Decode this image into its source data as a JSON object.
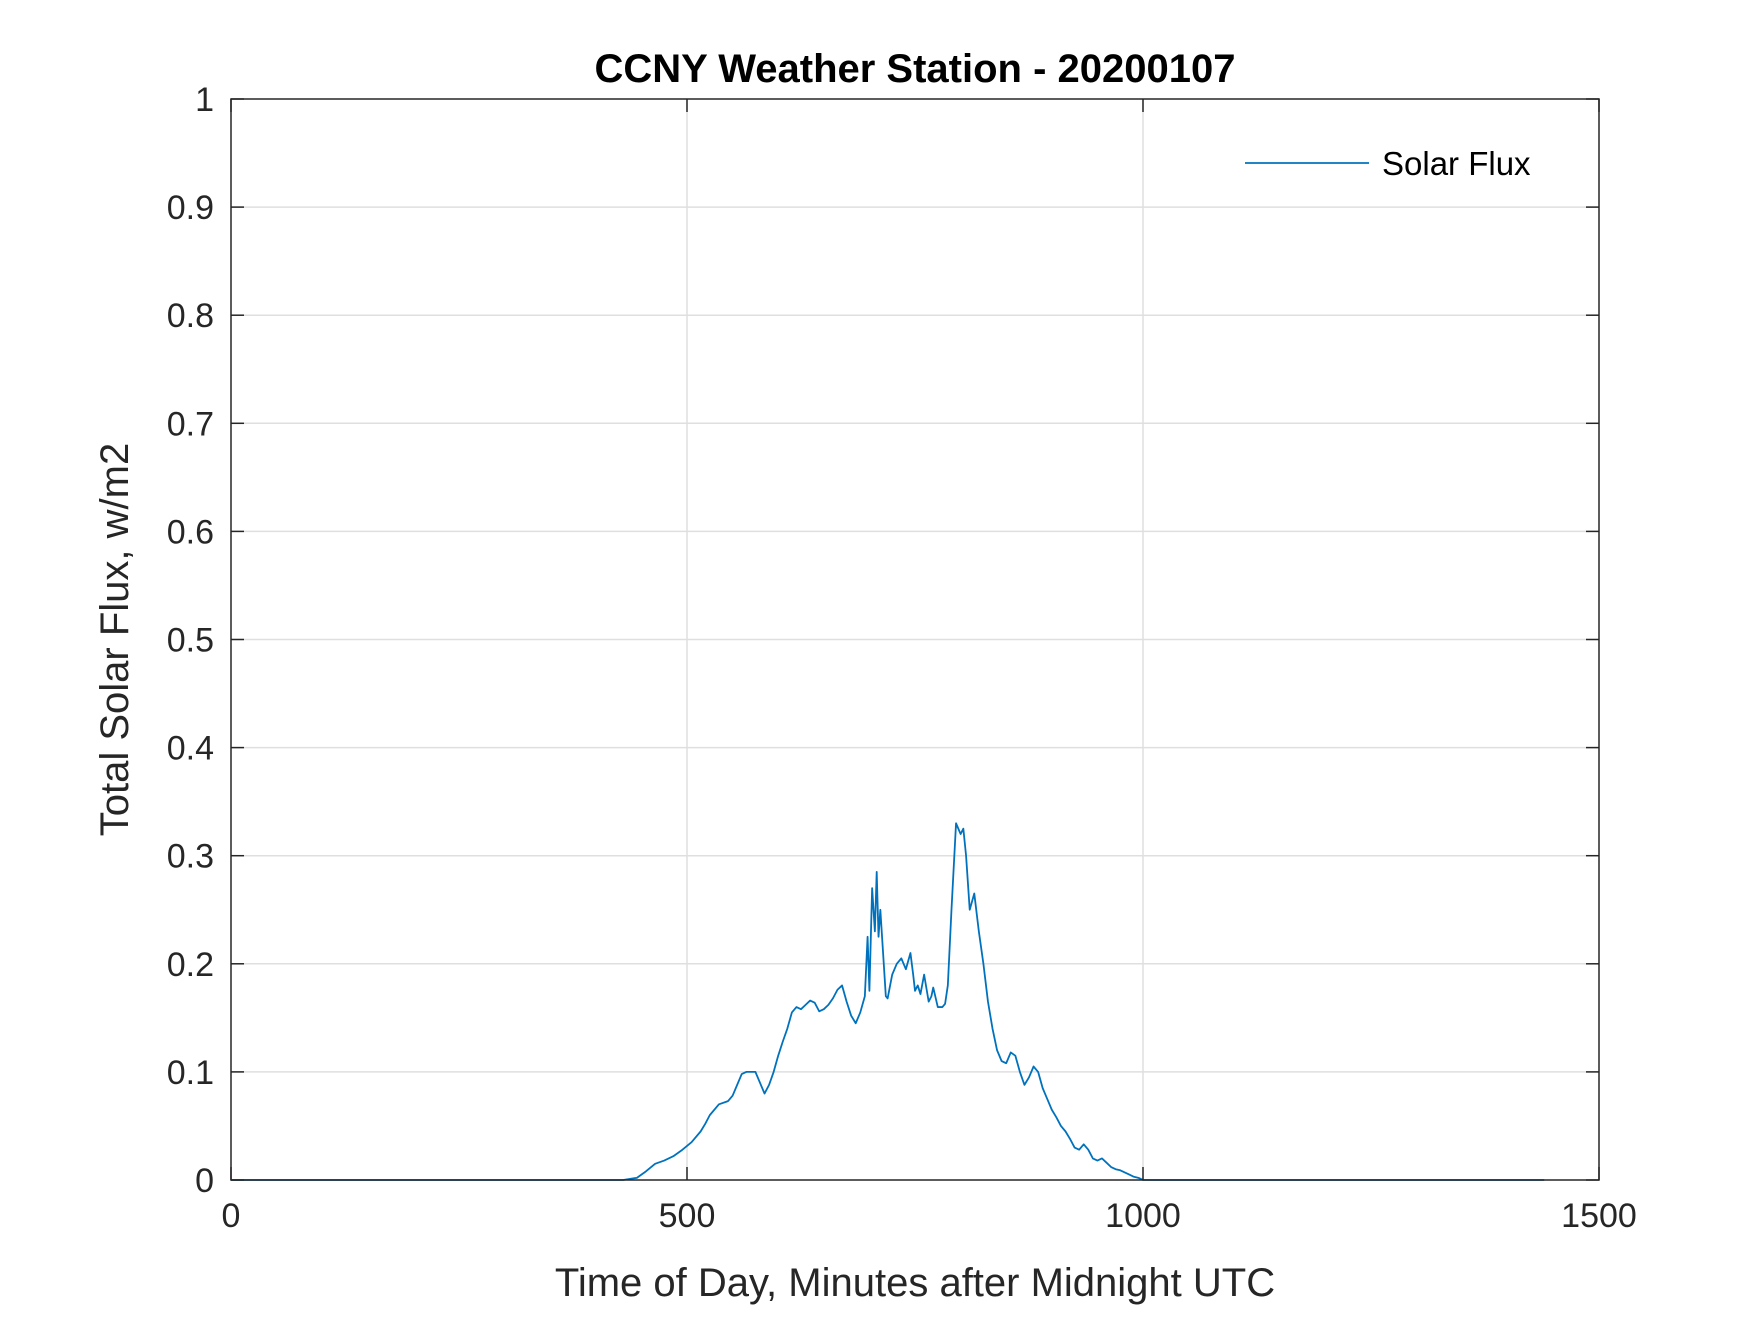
{
  "chart_data": {
    "type": "line",
    "title": "CCNY Weather Station - 20200107",
    "xlabel": "Time of Day, Minutes after Midnight UTC",
    "ylabel": "Total Solar Flux, w/m2",
    "xlim": [
      0,
      1500
    ],
    "ylim": [
      0,
      1
    ],
    "xticks": [
      0,
      500,
      1000,
      1500
    ],
    "xtick_labels": [
      "0",
      "500",
      "1000",
      "1500"
    ],
    "yticks": [
      0,
      0.1,
      0.2,
      0.3,
      0.4,
      0.5,
      0.6,
      0.7,
      0.8,
      0.9,
      1
    ],
    "ytick_labels": [
      "0",
      "0.1",
      "0.2",
      "0.3",
      "0.4",
      "0.5",
      "0.6",
      "0.7",
      "0.8",
      "0.9",
      "1"
    ],
    "grid": true,
    "legend_position": "top-right",
    "series": [
      {
        "name": "Solar Flux",
        "color": "#0072BD",
        "x": [
          0,
          100,
          200,
          300,
          400,
          430,
          445,
          455,
          465,
          475,
          485,
          495,
          505,
          515,
          520,
          525,
          535,
          545,
          550,
          555,
          560,
          565,
          570,
          575,
          580,
          585,
          590,
          595,
          600,
          605,
          610,
          615,
          620,
          625,
          630,
          635,
          640,
          645,
          650,
          655,
          660,
          665,
          670,
          675,
          680,
          685,
          690,
          695,
          698,
          700,
          703,
          706,
          708,
          710,
          712,
          715,
          718,
          720,
          725,
          730,
          735,
          740,
          745,
          748,
          750,
          753,
          756,
          760,
          765,
          768,
          770,
          775,
          780,
          783,
          786,
          790,
          795,
          800,
          803,
          806,
          810,
          815,
          820,
          825,
          830,
          835,
          840,
          845,
          850,
          855,
          860,
          865,
          870,
          875,
          880,
          885,
          890,
          895,
          900,
          905,
          910,
          915,
          920,
          925,
          930,
          935,
          940,
          945,
          950,
          955,
          960,
          965,
          970,
          975,
          980,
          985,
          990,
          995,
          1000,
          1005,
          1010,
          1100,
          1200,
          1300,
          1440
        ],
        "values": [
          0,
          0,
          0,
          0,
          0,
          0,
          0.002,
          0.008,
          0.015,
          0.018,
          0.022,
          0.028,
          0.035,
          0.045,
          0.052,
          0.06,
          0.07,
          0.073,
          0.078,
          0.088,
          0.098,
          0.1,
          0.1,
          0.1,
          0.09,
          0.08,
          0.088,
          0.1,
          0.115,
          0.128,
          0.14,
          0.155,
          0.16,
          0.158,
          0.162,
          0.166,
          0.164,
          0.156,
          0.158,
          0.162,
          0.168,
          0.176,
          0.18,
          0.165,
          0.152,
          0.145,
          0.155,
          0.17,
          0.225,
          0.175,
          0.27,
          0.23,
          0.285,
          0.225,
          0.25,
          0.21,
          0.17,
          0.168,
          0.19,
          0.2,
          0.205,
          0.195,
          0.21,
          0.19,
          0.175,
          0.18,
          0.172,
          0.19,
          0.165,
          0.17,
          0.178,
          0.16,
          0.16,
          0.163,
          0.18,
          0.25,
          0.33,
          0.32,
          0.325,
          0.3,
          0.25,
          0.265,
          0.23,
          0.2,
          0.165,
          0.14,
          0.12,
          0.11,
          0.108,
          0.118,
          0.115,
          0.1,
          0.088,
          0.095,
          0.105,
          0.1,
          0.085,
          0.075,
          0.065,
          0.058,
          0.05,
          0.045,
          0.038,
          0.03,
          0.028,
          0.033,
          0.028,
          0.02,
          0.018,
          0.02,
          0.016,
          0.012,
          0.01,
          0.009,
          0.007,
          0.005,
          0.003,
          0.002,
          0,
          0,
          0,
          0,
          0,
          0,
          0
        ]
      }
    ]
  }
}
